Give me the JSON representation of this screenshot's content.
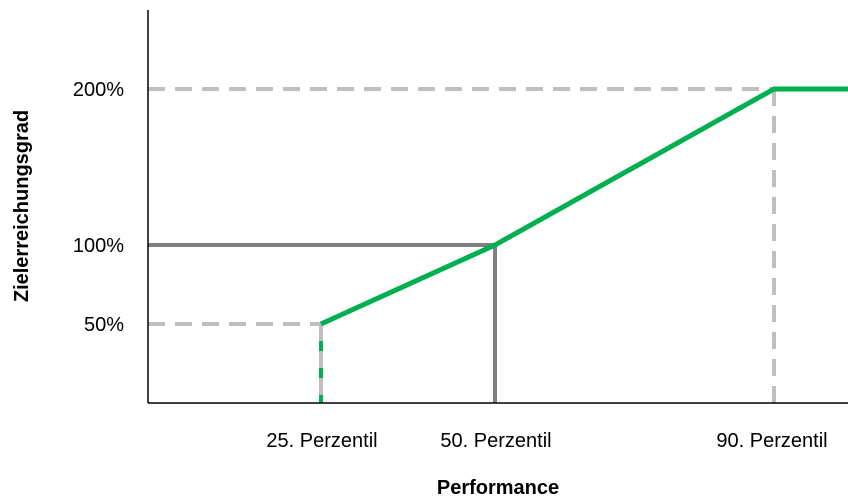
{
  "chart_data": {
    "type": "line",
    "xlabel": "Performance",
    "ylabel": "Zielerreichungsgrad",
    "x_ticks": [
      {
        "label": "25. Perzentil",
        "value": 25
      },
      {
        "label": "50. Perzentil",
        "value": 50
      },
      {
        "label": "90. Perzentil",
        "value": 90
      }
    ],
    "y_ticks": [
      {
        "label": "50%",
        "value": 50
      },
      {
        "label": "100%",
        "value": 100
      },
      {
        "label": "200%",
        "value": 200
      }
    ],
    "series": [
      {
        "color": "#00b050",
        "points": [
          {
            "x": 25,
            "y": 50
          },
          {
            "x": 50,
            "y": 100
          },
          {
            "x": 90,
            "y": 200
          },
          {
            "x": 100,
            "y": 200
          }
        ]
      }
    ],
    "reference_lines": [
      {
        "style": "solid",
        "color": "#808080",
        "at": {
          "x": 50,
          "y": 100
        }
      },
      {
        "style": "dashed",
        "color": "#bfbfbf",
        "at": {
          "x": 25,
          "y": 50
        }
      },
      {
        "style": "dashed",
        "color": "#bfbfbf",
        "at": {
          "x": 90,
          "y": 200
        }
      }
    ],
    "grid": false,
    "legend": "none"
  }
}
